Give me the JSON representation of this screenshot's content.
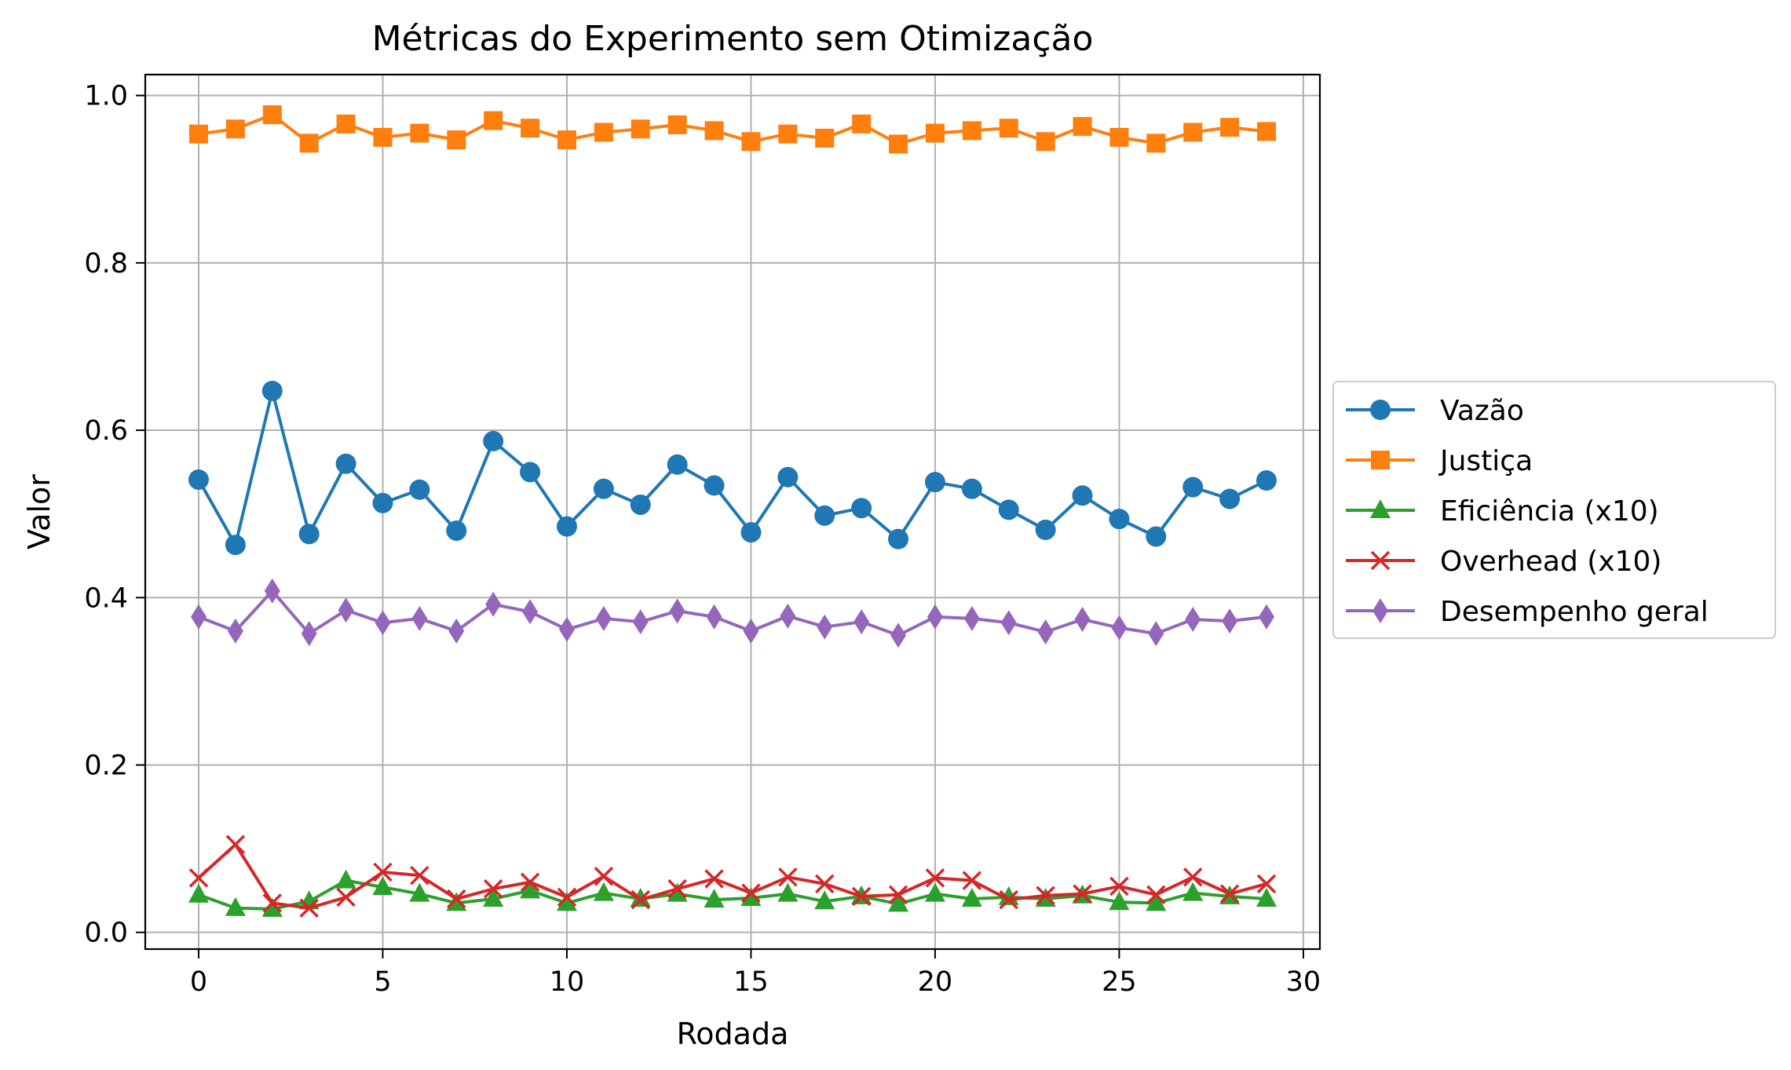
{
  "chart_data": {
    "type": "line",
    "title": "Métricas do Experimento sem Otimização",
    "xlabel": "Rodada",
    "ylabel": "Valor",
    "xlim": [
      -1.45,
      30.45
    ],
    "ylim": [
      -0.02,
      1.025
    ],
    "xticks": [
      0,
      5,
      10,
      15,
      20,
      25,
      30
    ],
    "xtick_labels": [
      "0",
      "5",
      "10",
      "15",
      "20",
      "25",
      "30"
    ],
    "yticks": [
      0.0,
      0.2,
      0.4,
      0.6,
      0.8,
      1.0
    ],
    "ytick_labels": [
      "0.0",
      "0.2",
      "0.4",
      "0.6",
      "0.8",
      "1.0"
    ],
    "grid": true,
    "legend_position": "right, outside plot",
    "x": [
      0,
      1,
      2,
      3,
      4,
      5,
      6,
      7,
      8,
      9,
      10,
      11,
      12,
      13,
      14,
      15,
      16,
      17,
      18,
      19,
      20,
      21,
      22,
      23,
      24,
      25,
      26,
      27,
      28,
      29
    ],
    "series": [
      {
        "name": "Vazão",
        "color": "#1f77b4",
        "marker": "circle",
        "values": [
          0.541,
          0.463,
          0.647,
          0.476,
          0.56,
          0.513,
          0.529,
          0.48,
          0.587,
          0.55,
          0.485,
          0.53,
          0.511,
          0.559,
          0.534,
          0.478,
          0.544,
          0.498,
          0.507,
          0.47,
          0.538,
          0.53,
          0.505,
          0.481,
          0.522,
          0.494,
          0.473,
          0.532,
          0.518,
          0.54
        ]
      },
      {
        "name": "Justiça",
        "color": "#ff7f0e",
        "marker": "square",
        "values": [
          0.954,
          0.96,
          0.977,
          0.943,
          0.966,
          0.95,
          0.955,
          0.947,
          0.97,
          0.961,
          0.947,
          0.956,
          0.96,
          0.965,
          0.958,
          0.945,
          0.954,
          0.949,
          0.966,
          0.942,
          0.955,
          0.958,
          0.961,
          0.945,
          0.963,
          0.95,
          0.943,
          0.956,
          0.962,
          0.957
        ]
      },
      {
        "name": "Eficiência (x10)",
        "color": "#2ca02c",
        "marker": "triangle",
        "values": [
          0.045,
          0.029,
          0.028,
          0.037,
          0.062,
          0.054,
          0.046,
          0.035,
          0.04,
          0.05,
          0.035,
          0.047,
          0.04,
          0.046,
          0.039,
          0.041,
          0.046,
          0.037,
          0.043,
          0.034,
          0.046,
          0.04,
          0.042,
          0.04,
          0.044,
          0.036,
          0.035,
          0.047,
          0.043,
          0.04
        ]
      },
      {
        "name": "Overhead (x10)",
        "color": "#d62728",
        "marker": "x",
        "values": [
          0.065,
          0.105,
          0.035,
          0.029,
          0.042,
          0.072,
          0.068,
          0.04,
          0.052,
          0.06,
          0.042,
          0.067,
          0.039,
          0.052,
          0.064,
          0.047,
          0.066,
          0.058,
          0.043,
          0.045,
          0.065,
          0.062,
          0.039,
          0.044,
          0.046,
          0.055,
          0.045,
          0.066,
          0.046,
          0.058
        ]
      },
      {
        "name": " Desempenho geral",
        "color": "#9467bd",
        "marker": "diamond",
        "values": [
          0.377,
          0.36,
          0.408,
          0.357,
          0.385,
          0.37,
          0.375,
          0.36,
          0.392,
          0.383,
          0.362,
          0.375,
          0.371,
          0.384,
          0.377,
          0.36,
          0.378,
          0.365,
          0.371,
          0.355,
          0.377,
          0.375,
          0.37,
          0.359,
          0.374,
          0.364,
          0.357,
          0.374,
          0.372,
          0.377
        ]
      }
    ]
  }
}
